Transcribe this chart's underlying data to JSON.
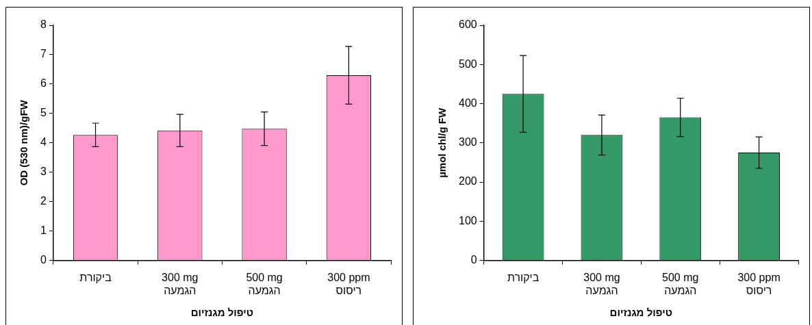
{
  "chart_data": [
    {
      "type": "bar",
      "xlabel": "טיפול מגנזיום",
      "ylabel": "OD (530 nm)/gFW",
      "categories": [
        "ביקורת",
        "300 mg\nהגמעה",
        "500 mg\nהגמעה",
        "300 ppm\nריסוס"
      ],
      "values": [
        4.27,
        4.42,
        4.48,
        6.3
      ],
      "errors": [
        0.4,
        0.55,
        0.57,
        0.98
      ],
      "color": "#ff99cc",
      "ylim": [
        0,
        8
      ],
      "yticks": [
        0,
        1,
        2,
        3,
        4,
        5,
        6,
        7,
        8
      ],
      "grid": false,
      "legend": false
    },
    {
      "type": "bar",
      "xlabel": "טיפול מגנזיום",
      "ylabel": "µmol chl/g FW",
      "categories": [
        "ביקורת",
        "300 mg\nהגמעה",
        "500 mg\nהגמעה",
        "300 ppm\nריסוס"
      ],
      "values": [
        425,
        320,
        365,
        275
      ],
      "errors": [
        98,
        51,
        49,
        40
      ],
      "color": "#339966",
      "ylim": [
        0,
        600
      ],
      "yticks": [
        0,
        100,
        200,
        300,
        400,
        500,
        600
      ],
      "grid": false,
      "legend": false
    }
  ]
}
